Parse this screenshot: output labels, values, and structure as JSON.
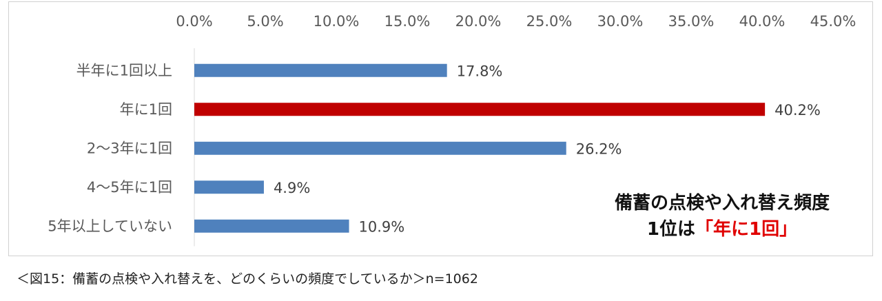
{
  "chart_data": {
    "type": "bar",
    "orientation": "horizontal",
    "categories": [
      "半年に1回以上",
      "年に1回",
      "2～3年に1回",
      "4～5年に1回",
      "5年以上していない"
    ],
    "values": [
      17.8,
      40.2,
      26.2,
      4.9,
      10.9
    ],
    "data_labels": [
      "17.8%",
      "40.2%",
      "26.2%",
      "4.9%",
      "10.9%"
    ],
    "xlim": [
      0,
      45
    ],
    "x_ticks": [
      "0.0%",
      "5.0%",
      "10.0%",
      "15.0%",
      "20.0%",
      "25.0%",
      "30.0%",
      "35.0%",
      "40.0%",
      "45.0%"
    ],
    "x_axis_position": "top",
    "grid": false,
    "bar_colors": [
      "#4f81bd",
      "#c00000",
      "#4f81bd",
      "#4f81bd",
      "#4f81bd"
    ]
  },
  "annotation": {
    "line1": "備蓄の点検や入れ替え頻度",
    "line2_prefix": "1位は",
    "line2_highlight": "「年に1回」"
  },
  "caption": "＜図15：備蓄の点検や入れ替えを、どのくらいの頻度でしているか＞n=1062"
}
